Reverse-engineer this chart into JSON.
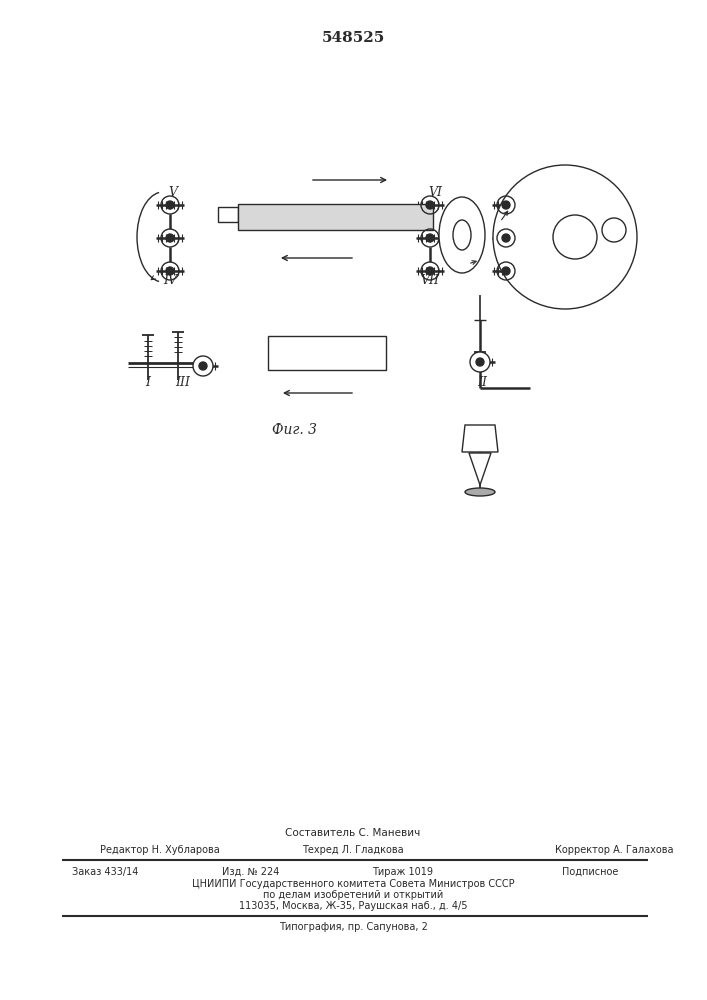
{
  "patent_number": "548525",
  "fig_label": "Фиг. 3",
  "bg_color": "#ffffff",
  "line_color": "#2a2a2a",
  "footer": {
    "line1": "Составитель С. Маневич",
    "line2_left": "Редактор Н. Хубларова",
    "line2_mid": "Техред Л. Гладкова",
    "line2_right": "Корректор А. Галахова",
    "line3_col1": "Заказ 433/14",
    "line3_col2": "Изд. № 224",
    "line3_col3": "Тираж 1019",
    "line3_col4": "Подписное",
    "line4": "ЦНИИПИ Государственного комитета Совета Министров СССР",
    "line5": "по делам изобретений и открытий",
    "line6": "113035, Москва, Ж-35, Раушская наб., д. 4/5",
    "line7": "Типография, пр. Сапунова, 2"
  }
}
